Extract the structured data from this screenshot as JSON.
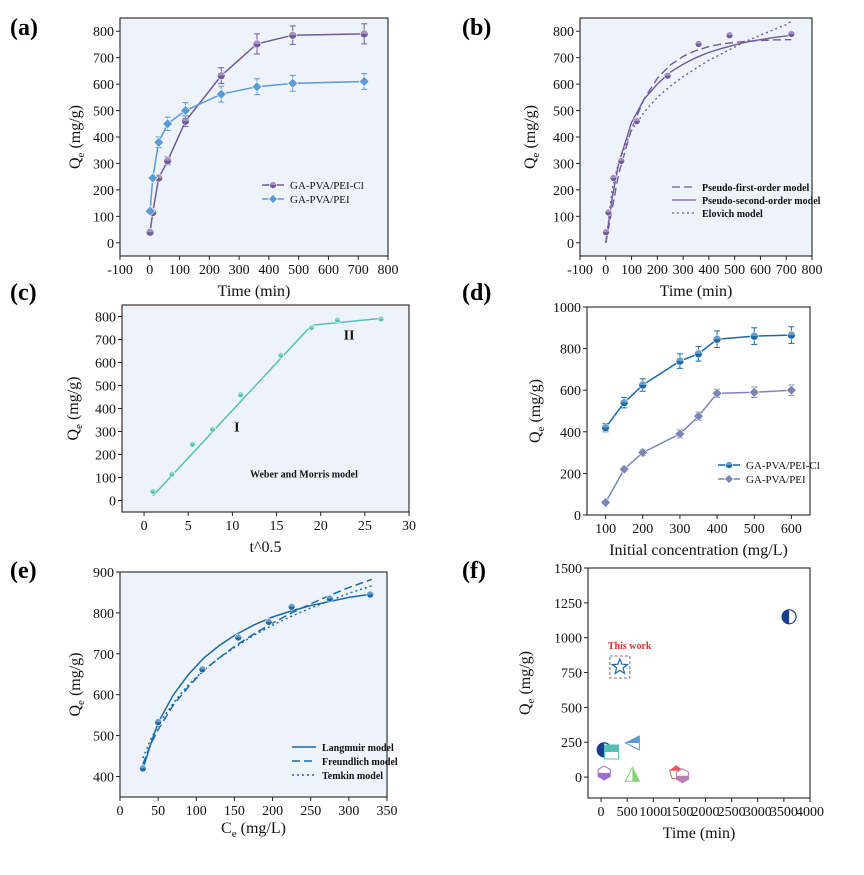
{
  "colors": {
    "purple": "#6f5a9a",
    "blue": "#5b9bd5",
    "teal": "#55c1b4",
    "navy": "#1a6aa8",
    "slate": "#7a86b4",
    "red": "#e0312f",
    "plot_bg": "#eef3fb"
  },
  "chart_data": [
    {
      "type": "line",
      "panel": "(a)",
      "xlabel": "Time (min)",
      "ylabel_main": "Q",
      "ylabel_sub": "e",
      "ylabel_unit": " (mg/g)",
      "xlim": [
        -100,
        800
      ],
      "ylim": [
        -50,
        850
      ],
      "xticks": [
        "-100",
        "0",
        "100",
        "200",
        "300",
        "400",
        "500",
        "600",
        "700",
        "800"
      ],
      "yticks": [
        "0",
        "100",
        "200",
        "300",
        "400",
        "500",
        "600",
        "700",
        "800"
      ],
      "legend_position": "center-right",
      "grid": false,
      "series": [
        {
          "name": "GA-PVA/PEI-Cl",
          "color": "#6f5a9a",
          "marker": "circle",
          "x": [
            1,
            10,
            30,
            60,
            120,
            240,
            360,
            480,
            720
          ],
          "y": [
            40,
            115,
            245,
            310,
            460,
            632,
            752,
            785,
            790
          ],
          "err": [
            0,
            0,
            0,
            15,
            20,
            30,
            38,
            35,
            38
          ]
        },
        {
          "name": "GA-PVA/PEI",
          "color": "#5b9bd5",
          "marker": "diamond",
          "x": [
            1,
            10,
            30,
            60,
            120,
            240,
            360,
            480,
            720
          ],
          "y": [
            120,
            245,
            380,
            450,
            500,
            562,
            590,
            603,
            610
          ],
          "err": [
            0,
            0,
            20,
            25,
            30,
            30,
            30,
            30,
            30
          ]
        }
      ]
    },
    {
      "type": "line",
      "panel": "(b)",
      "xlabel": "Time (min)",
      "ylabel_main": "Q",
      "ylabel_sub": "e",
      "ylabel_unit": " (mg/g)",
      "xlim": [
        -100,
        800
      ],
      "ylim": [
        -50,
        850
      ],
      "xticks": [
        "-100",
        "0",
        "100",
        "200",
        "300",
        "400",
        "500",
        "600",
        "700",
        "800"
      ],
      "yticks": [
        "0",
        "100",
        "200",
        "300",
        "400",
        "500",
        "600",
        "700",
        "800"
      ],
      "legend_position": "lower-right",
      "points": {
        "x": [
          1,
          10,
          30,
          60,
          120,
          240,
          360,
          480,
          720
        ],
        "y": [
          40,
          115,
          245,
          310,
          460,
          632,
          752,
          785,
          790
        ]
      },
      "series": [
        {
          "name": "Pseudo-first-order model",
          "dash": "8,4",
          "x": [
            0,
            50,
            100,
            150,
            200,
            250,
            300,
            350,
            400,
            450,
            500,
            550,
            600,
            650,
            700,
            720
          ],
          "y": [
            0,
            260,
            432,
            546,
            622,
            672,
            705,
            727,
            742,
            752,
            758,
            762,
            765,
            767,
            768,
            768
          ]
        },
        {
          "name": "Pseudo-second-order model",
          "dash": "",
          "x": [
            0,
            25,
            50,
            100,
            150,
            200,
            250,
            300,
            350,
            400,
            450,
            500,
            550,
            600,
            650,
            700,
            720
          ],
          "y": [
            0,
            170,
            300,
            455,
            545,
            600,
            645,
            675,
            700,
            720,
            735,
            748,
            760,
            768,
            776,
            782,
            785
          ]
        },
        {
          "name": "Elovich model",
          "dash": "2,3",
          "x": [
            1,
            25,
            50,
            100,
            150,
            200,
            250,
            300,
            350,
            400,
            450,
            500,
            550,
            600,
            650,
            700,
            720
          ],
          "y": [
            0,
            205,
            305,
            425,
            495,
            550,
            592,
            628,
            660,
            690,
            715,
            740,
            765,
            785,
            805,
            825,
            838
          ]
        }
      ]
    },
    {
      "type": "line",
      "panel": "(c)",
      "xlabel": "t^0.5",
      "ylabel_main": "Q",
      "ylabel_sub": "e",
      "ylabel_unit": " (mg/g)",
      "xlim": [
        -2.5,
        30
      ],
      "ylim": [
        -50,
        850
      ],
      "xticks": [
        "0",
        "5",
        "10",
        "15",
        "20",
        "25",
        "30"
      ],
      "yticks": [
        "0",
        "100",
        "200",
        "300",
        "400",
        "500",
        "600",
        "700",
        "800"
      ],
      "annotations": [
        "I",
        "II",
        "Weber and Morris model"
      ],
      "series": [
        {
          "name": "Stage I fit",
          "x": [
            1,
            18.97
          ],
          "y": [
            20,
            762
          ]
        },
        {
          "name": "Stage II fit",
          "x": [
            18.97,
            26.83
          ],
          "y": [
            762,
            792
          ]
        }
      ],
      "points": {
        "x": [
          1,
          3.16,
          5.48,
          7.75,
          10.95,
          15.49,
          18.97,
          21.91,
          26.83
        ],
        "y": [
          40,
          115,
          245,
          310,
          460,
          632,
          752,
          785,
          790
        ]
      }
    },
    {
      "type": "line",
      "panel": "(d)",
      "xlabel": "Initial concentration (mg/L)",
      "ylabel_main": "Q",
      "ylabel_sub": "e",
      "ylabel_unit": " (mg/g)",
      "xlim": [
        50,
        650
      ],
      "ylim": [
        0,
        1000
      ],
      "xticks": [
        "100",
        "200",
        "300",
        "400",
        "500",
        "600"
      ],
      "yticks": [
        "0",
        "200",
        "400",
        "600",
        "800",
        "1000"
      ],
      "legend_position": "center-right",
      "series": [
        {
          "name": "GA-PVA/PEI-Cl",
          "color": "#1a6aa8",
          "marker": "circle",
          "x": [
            100,
            150,
            200,
            300,
            350,
            400,
            500,
            600
          ],
          "y": [
            420,
            540,
            625,
            740,
            775,
            845,
            860,
            865
          ],
          "err": [
            20,
            25,
            30,
            35,
            35,
            40,
            40,
            40
          ]
        },
        {
          "name": "GA-PVA/PEI",
          "color": "#7a86b4",
          "marker": "diamond",
          "x": [
            100,
            150,
            200,
            300,
            350,
            400,
            500,
            600
          ],
          "y": [
            60,
            220,
            300,
            390,
            475,
            585,
            590,
            600
          ],
          "err": [
            0,
            10,
            15,
            20,
            20,
            20,
            25,
            25
          ]
        }
      ]
    },
    {
      "type": "line",
      "panel": "(e)",
      "xlabel_main": "C",
      "xlabel_sub": "e",
      "xlabel_unit": " (mg/L)",
      "ylabel_main": "Q",
      "ylabel_sub": "e",
      "ylabel_unit": " (mg/g)",
      "xlim": [
        0,
        350
      ],
      "ylim": [
        350,
        900
      ],
      "xticks": [
        "0",
        "50",
        "100",
        "150",
        "200",
        "250",
        "300",
        "350"
      ],
      "yticks": [
        "400",
        "500",
        "600",
        "700",
        "800",
        "900"
      ],
      "legend_position": "lower-right",
      "points": {
        "x": [
          30,
          50,
          108,
          155,
          195,
          225,
          275,
          328
        ],
        "y": [
          420,
          533,
          662,
          740,
          778,
          815,
          835,
          845
        ]
      },
      "series": [
        {
          "name": "Langmuir model",
          "dash": "",
          "x": [
            30,
            40,
            50,
            70,
            90,
            110,
            130,
            150,
            175,
            200,
            225,
            250,
            275,
            300,
            330
          ],
          "y": [
            418,
            478,
            532,
            600,
            650,
            690,
            720,
            745,
            770,
            790,
            805,
            818,
            828,
            838,
            846
          ]
        },
        {
          "name": "Freundlich model",
          "dash": "8,4",
          "x": [
            30,
            40,
            50,
            70,
            90,
            110,
            130,
            150,
            175,
            200,
            225,
            250,
            275,
            300,
            330
          ],
          "y": [
            430,
            478,
            515,
            575,
            620,
            660,
            690,
            718,
            748,
            775,
            800,
            822,
            843,
            862,
            882
          ]
        },
        {
          "name": "Temkin model",
          "dash": "2,3",
          "x": [
            30,
            40,
            50,
            70,
            90,
            110,
            130,
            150,
            175,
            200,
            225,
            250,
            275,
            300,
            330
          ],
          "y": [
            445,
            490,
            525,
            580,
            625,
            660,
            690,
            715,
            745,
            770,
            792,
            812,
            830,
            848,
            866
          ]
        }
      ]
    },
    {
      "type": "scatter",
      "panel": "(f)",
      "xlabel": "Time (min)",
      "ylabel_main": "Q",
      "ylabel_sub": "e",
      "ylabel_unit": " (mg/g)",
      "xlim": [
        -250,
        4000
      ],
      "ylim": [
        -150,
        1500
      ],
      "xticks": [
        "0",
        "500",
        "1000",
        "1500",
        "2000",
        "2500",
        "3000",
        "3500",
        "4000"
      ],
      "yticks": [
        "0",
        "250",
        "500",
        "750",
        "1000",
        "1250",
        "1500"
      ],
      "annotation": "This work",
      "points": [
        {
          "x": 60,
          "y": 195,
          "shape": "half-circle",
          "color": "#1a3d8f"
        },
        {
          "x": 200,
          "y": 180,
          "shape": "half-square",
          "color": "#55c1b4"
        },
        {
          "x": 60,
          "y": 30,
          "shape": "hexagon",
          "color": "#9a6fd0"
        },
        {
          "x": 600,
          "y": 245,
          "shape": "left-triangle",
          "color": "#5b9bd5"
        },
        {
          "x": 600,
          "y": 20,
          "shape": "triangle",
          "color": "#86cf7a"
        },
        {
          "x": 1440,
          "y": 30,
          "shape": "pentagon",
          "color": "#e05a5a"
        },
        {
          "x": 1560,
          "y": 10,
          "shape": "hexagon",
          "color": "#b87fb0"
        },
        {
          "x": 3600,
          "y": 1150,
          "shape": "half-circle",
          "color": "#1a3d8f"
        },
        {
          "x": 360,
          "y": 790,
          "shape": "star",
          "color": "#1a6aa8"
        }
      ]
    }
  ]
}
